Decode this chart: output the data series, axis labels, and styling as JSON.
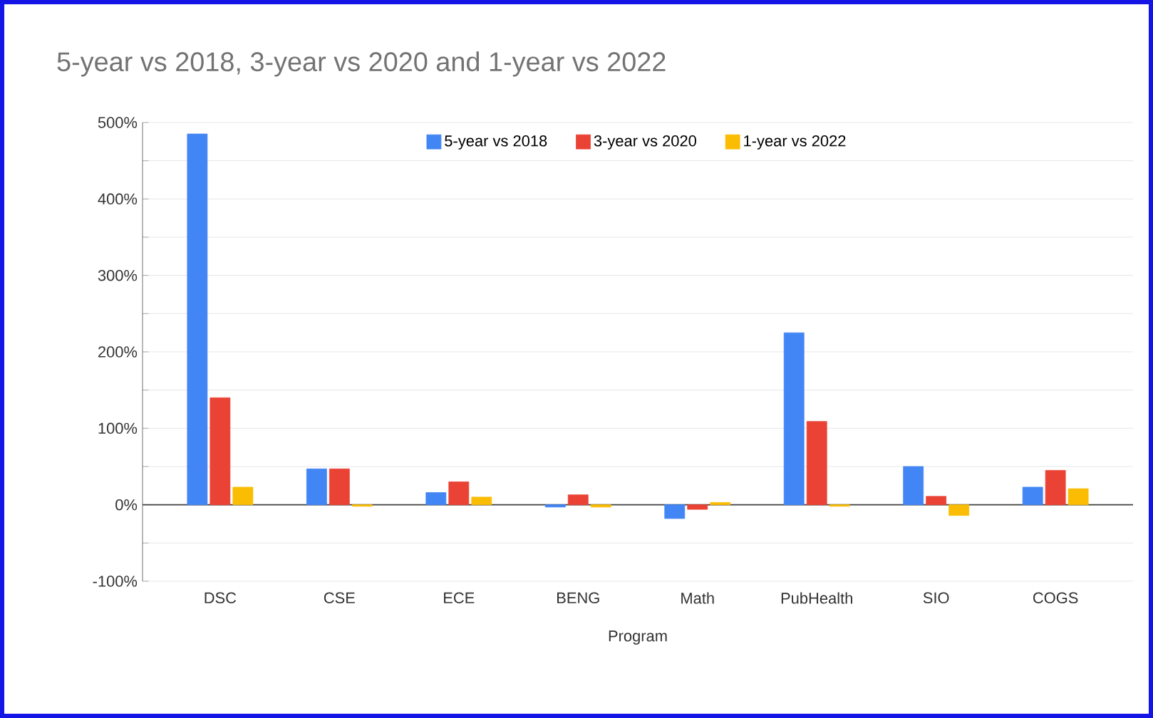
{
  "chart_data": {
    "type": "bar",
    "title": "5-year vs 2018, 3-year vs 2020 and 1-year vs 2022",
    "xlabel": "Program",
    "categories": [
      "DSC",
      "CSE",
      "ECE",
      "BENG",
      "Math",
      "PubHealth",
      "SIO",
      "COGS"
    ],
    "series": [
      {
        "name": "5-year vs 2018",
        "color": "#4285f4",
        "values": [
          485,
          47,
          16,
          -3,
          -18,
          225,
          50,
          23
        ]
      },
      {
        "name": "3-year vs 2020",
        "color": "#ea4335",
        "values": [
          140,
          47,
          30,
          13,
          -6,
          109,
          11,
          45
        ]
      },
      {
        "name": "1-year vs 2022",
        "color": "#fbbc04",
        "values": [
          23,
          -2,
          10,
          -3,
          3,
          -2,
          -14,
          21
        ]
      }
    ],
    "ylim": [
      -100,
      500
    ],
    "yticks": [
      {
        "value": -100,
        "label": "-100%"
      },
      {
        "value": -50,
        "label": null
      },
      {
        "value": 0,
        "label": "0%"
      },
      {
        "value": 50,
        "label": null
      },
      {
        "value": 100,
        "label": "100%"
      },
      {
        "value": 150,
        "label": null
      },
      {
        "value": 200,
        "label": "200%"
      },
      {
        "value": 250,
        "label": null
      },
      {
        "value": 300,
        "label": "300%"
      },
      {
        "value": 350,
        "label": null
      },
      {
        "value": 400,
        "label": "400%"
      },
      {
        "value": 450,
        "label": null
      },
      {
        "value": 500,
        "label": "500%"
      }
    ],
    "grid": "y",
    "legend": "top"
  }
}
